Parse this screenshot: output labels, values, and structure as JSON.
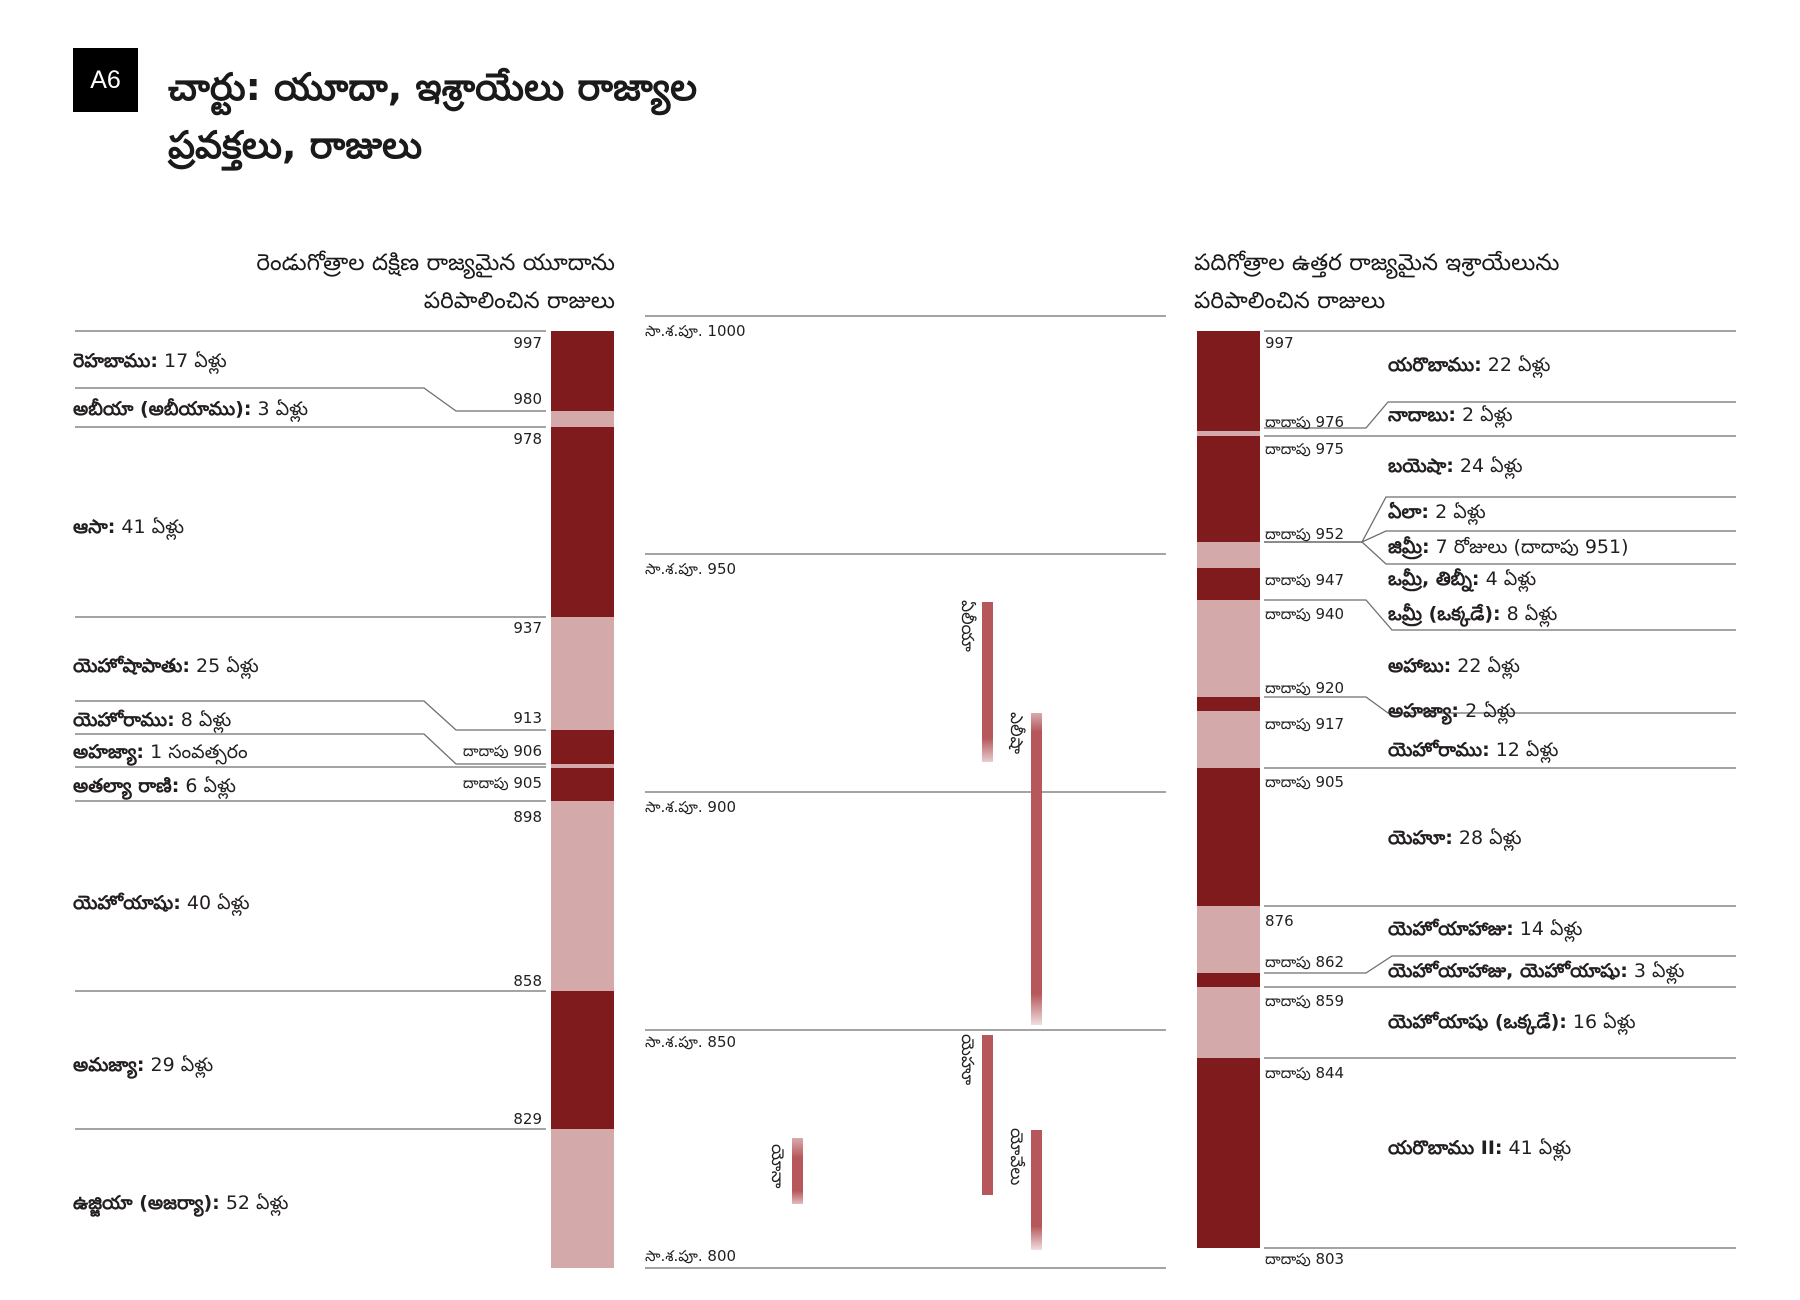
{
  "badge": "A6",
  "title": {
    "line1": "చార్టు: యూదా, ఇశ్రాయేలు రాజ్యాల",
    "line2": "ప్రవక్తలు, రాజులు"
  },
  "judah": {
    "heading1": "రెండుగోత్రాల దక్షిణ రాజ్యమైన యూదాను",
    "heading2": "పరిపాలించిన రాజులు",
    "kings": [
      {
        "name": "రెహబాము:",
        "reign": "17 ఏళ్లు"
      },
      {
        "name": "అబీయా (అబీయాము):",
        "reign": "3 ఏళ్లు"
      },
      {
        "name": "ఆసా:",
        "reign": "41 ఏళ్లు"
      },
      {
        "name": "యెహోషాపాతు:",
        "reign": "25 ఏళ్లు"
      },
      {
        "name": "యెహోరాము:",
        "reign": "8 ఏళ్లు"
      },
      {
        "name": "అహజ్యా:",
        "reign": "1 సంవత్సరం"
      },
      {
        "name": "అతల్యా రాణి:",
        "reign": "6 ఏళ్లు"
      },
      {
        "name": "యెహోయాషు:",
        "reign": "40 ఏళ్లు"
      },
      {
        "name": "అమజ్యా:",
        "reign": "29 ఏళ్లు"
      },
      {
        "name": "ఉజ్జియా (అజర్యా):",
        "reign": "52 ఏళ్లు"
      }
    ],
    "years": [
      "997",
      "980",
      "978",
      "937",
      "913",
      "దాదాపు 906",
      "దాదాపు 905",
      "898",
      "858",
      "829"
    ]
  },
  "timeline": {
    "eras": [
      "సా.శ.పూ. 1000",
      "సా.శ.పూ. 950",
      "సా.శ.పూ. 900",
      "సా.శ.పూ. 850",
      "సా.శ.పూ. 800"
    ],
    "prophets": [
      "ఏలీయా",
      "ఎలీషా",
      "యెహూ",
      "యోవేలు",
      "యోనా"
    ]
  },
  "israel": {
    "heading1": "పదిగోత్రాల ఉత్తర రాజ్యమైన ఇశ్రాయేలును",
    "heading2": "పరిపాలించిన రాజులు",
    "kings": [
      {
        "name": "యరొబాము:",
        "reign": "22 ఏళ్లు"
      },
      {
        "name": "నాదాబు:",
        "reign": "2 ఏళ్లు"
      },
      {
        "name": "బయెషా:",
        "reign": "24 ఏళ్లు"
      },
      {
        "name": "ఏలా:",
        "reign": "2 ఏళ్లు"
      },
      {
        "name": "జిమ్రీ:",
        "reign": "7 రోజులు (దాదాపు 951)"
      },
      {
        "name": "ఒమ్రీ, తిబ్నీ:",
        "reign": "4 ఏళ్లు"
      },
      {
        "name": "ఒమ్రీ (ఒక్కడే):",
        "reign": "8 ఏళ్లు"
      },
      {
        "name": "అహాబు:",
        "reign": "22 ఏళ్లు"
      },
      {
        "name": "అహజ్యా:",
        "reign": "2 ఏళ్లు"
      },
      {
        "name": "యెహోరాము:",
        "reign": "12 ఏళ్లు"
      },
      {
        "name": "యెహూ:",
        "reign": "28 ఏళ్లు"
      },
      {
        "name": "యెహోయాహాజు:",
        "reign": "14 ఏళ్లు"
      },
      {
        "name": "యెహోయాహాజు, యెహోయాషు:",
        "reign": "3 ఏళ్లు"
      },
      {
        "name": "యెహోయాషు (ఒక్కడే):",
        "reign": "16 ఏళ్లు"
      },
      {
        "name": "యరొబాము II:",
        "reign": "41 ఏళ్లు"
      }
    ],
    "years": [
      "997",
      "దాదాపు 976",
      "దాదాపు 975",
      "దాదాపు 952",
      "దాదాపు 947",
      "దాదాపు 940",
      "దాదాపు 920",
      "దాదాపు 917",
      "దాదాపు 905",
      "876",
      "దాదాపు 862",
      "దాదాపు 859",
      "దాదాపు 844",
      "దాదాపు 803"
    ]
  },
  "colors": {
    "dark": "#7f1a1d",
    "light": "#d3a9a9",
    "prophet": "#b5575b",
    "rule": "#6d6e71"
  }
}
